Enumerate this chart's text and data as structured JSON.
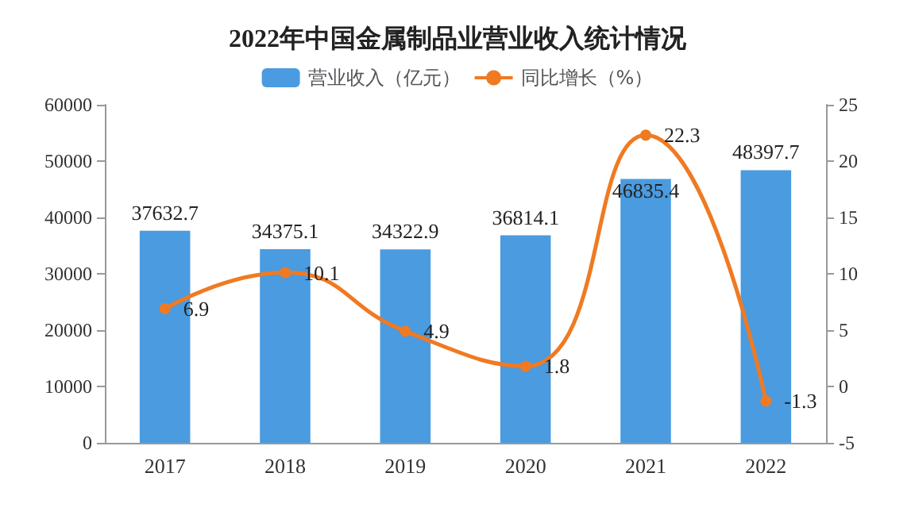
{
  "chart_data": {
    "type": "bar",
    "title": "2022年中国金属制品业营业收入统计情况",
    "categories": [
      "2017",
      "2018",
      "2019",
      "2020",
      "2021",
      "2022"
    ],
    "series": [
      {
        "name": "营业收入（亿元）",
        "type": "bar",
        "color": "#4a9be0",
        "values": [
          37632.7,
          34375.1,
          34322.9,
          36814.1,
          46835.4,
          48397.7
        ]
      },
      {
        "name": "同比增长（%）",
        "type": "line",
        "axis": "y2",
        "color": "#f07a22",
        "values": [
          6.9,
          10.1,
          4.9,
          1.8,
          22.3,
          -1.3
        ]
      }
    ],
    "ylim": [
      0,
      60000
    ],
    "yticks": [
      0,
      10000,
      20000,
      30000,
      40000,
      50000,
      60000
    ],
    "y2lim": [
      -5,
      25
    ],
    "y2ticks": [
      -5,
      0,
      5,
      10,
      15,
      20,
      25
    ],
    "data_labels": true,
    "legend": "top",
    "grid": false,
    "marker": "circle",
    "line_style": "solid"
  }
}
